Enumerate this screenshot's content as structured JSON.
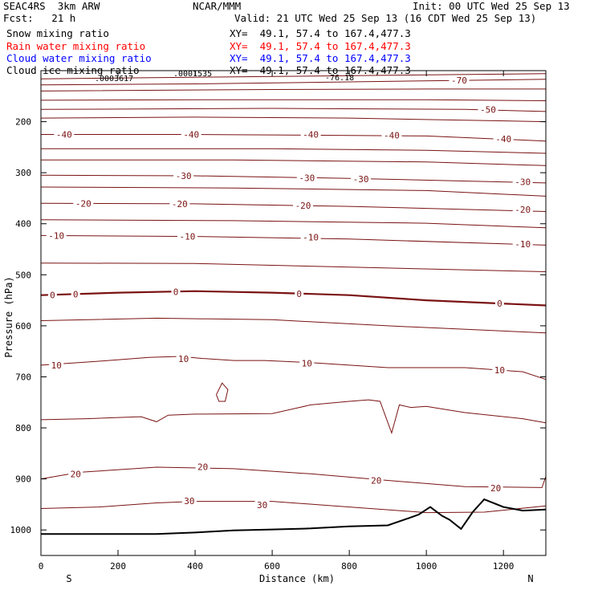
{
  "header": {
    "model": "SEAC4RS  3km ARW",
    "org": "NCAR/MMM",
    "init": "Init: 00 UTC Wed 25 Sep 13",
    "fcst": "Fcst:   21 h",
    "valid": "Valid: 21 UTC Wed 25 Sep 13 (16 CDT Wed 25 Sep 13)"
  },
  "fields": [
    {
      "name": "Snow mixing ratio",
      "xy": "XY=  49.1, 57.4 to 167.4,477.3",
      "color": "#000000"
    },
    {
      "name": "Rain water mixing ratio",
      "xy": "XY=  49.1, 57.4 to 167.4,477.3",
      "color": "#ff0000"
    },
    {
      "name": "Cloud water mixing ratio",
      "xy": "XY=  49.1, 57.4 to 167.4,477.3",
      "color": "#0000ff"
    },
    {
      "name": "Cloud ice mixing ratio",
      "xy": "XY=  49.1, 57.4 to 167.4,477.3",
      "color": "#000000"
    }
  ],
  "overlap_labels": [
    ".0003617",
    ".0001535",
    "-76.18"
  ],
  "chart_data": {
    "type": "line",
    "xlabel": "Distance (km)",
    "ylabel": "Pressure (hPa)",
    "xlim": [
      0,
      1310
    ],
    "ylim": [
      1050,
      100
    ],
    "x_ticks": [
      0,
      200,
      400,
      600,
      800,
      1000,
      1200
    ],
    "x_tick_labels": [
      "0",
      "200",
      "400",
      "600",
      "800",
      "1000",
      "1200"
    ],
    "y_ticks": [
      200,
      300,
      400,
      500,
      600,
      700,
      800,
      900,
      1000
    ],
    "y_tick_labels": [
      "200",
      "300",
      "400",
      "500",
      "600",
      "700",
      "800",
      "900",
      "1000"
    ],
    "x_end_labels": {
      "left": "S",
      "right": "N"
    },
    "isotherm_color": "#7a1212",
    "terrain_color": "#000000",
    "isotherms": [
      {
        "points": [
          [
            0,
            116
          ],
          [
            1310,
            106
          ]
        ]
      },
      {
        "points": [
          [
            0,
            128
          ],
          [
            400,
            126
          ],
          [
            800,
            122
          ],
          [
            1100,
            119
          ],
          [
            1310,
            117
          ]
        ],
        "label": "-70",
        "label_at": [
          1085,
          119
        ]
      },
      {
        "points": [
          [
            0,
            140
          ],
          [
            600,
            137
          ],
          [
            1000,
            136
          ],
          [
            1310,
            136
          ]
        ]
      },
      {
        "points": [
          [
            0,
            158
          ],
          [
            500,
            157
          ],
          [
            1000,
            157
          ],
          [
            1310,
            159
          ]
        ]
      },
      {
        "points": [
          [
            0,
            176
          ],
          [
            600,
            174
          ],
          [
            1100,
            176
          ],
          [
            1310,
            180
          ]
        ],
        "label": "-50",
        "label_at": [
          1160,
          176
        ]
      },
      {
        "points": [
          [
            0,
            193
          ],
          [
            400,
            191
          ],
          [
            800,
            193
          ],
          [
            1310,
            200
          ]
        ]
      },
      {
        "points": [
          [
            0,
            225
          ],
          [
            400,
            225
          ],
          [
            1000,
            228
          ],
          [
            1310,
            238
          ]
        ],
        "label": "-40",
        "label_at": [
          [
            60,
            225
          ],
          [
            390,
            225
          ],
          [
            700,
            225
          ],
          [
            910,
            227
          ],
          [
            1200,
            234
          ]
        ]
      },
      {
        "points": [
          [
            0,
            253
          ],
          [
            600,
            253
          ],
          [
            1000,
            256
          ],
          [
            1310,
            262
          ]
        ]
      },
      {
        "points": [
          [
            0,
            275
          ],
          [
            500,
            275
          ],
          [
            1000,
            279
          ],
          [
            1310,
            286
          ]
        ]
      },
      {
        "points": [
          [
            0,
            305
          ],
          [
            400,
            306
          ],
          [
            800,
            311
          ],
          [
            1310,
            320
          ]
        ],
        "label": "-30",
        "label_at": [
          [
            370,
            306
          ],
          [
            690,
            310
          ],
          [
            830,
            312
          ],
          [
            1250,
            318
          ]
        ]
      },
      {
        "points": [
          [
            0,
            328
          ],
          [
            500,
            330
          ],
          [
            1000,
            335
          ],
          [
            1310,
            346
          ]
        ]
      },
      {
        "points": [
          [
            0,
            360
          ],
          [
            400,
            361
          ],
          [
            800,
            366
          ],
          [
            1310,
            376
          ]
        ],
        "label": "-20",
        "label_at": [
          [
            110,
            360
          ],
          [
            360,
            361
          ],
          [
            680,
            364
          ],
          [
            1250,
            372
          ]
        ]
      },
      {
        "points": [
          [
            0,
            392
          ],
          [
            500,
            394
          ],
          [
            1000,
            399
          ],
          [
            1310,
            408
          ]
        ]
      },
      {
        "points": [
          [
            0,
            423
          ],
          [
            400,
            425
          ],
          [
            800,
            430
          ],
          [
            1310,
            442
          ]
        ],
        "label": "-10",
        "label_at": [
          [
            40,
            423
          ],
          [
            380,
            425
          ],
          [
            700,
            426
          ],
          [
            1250,
            440
          ]
        ]
      },
      {
        "points": [
          [
            0,
            477
          ],
          [
            400,
            478
          ],
          [
            800,
            485
          ],
          [
            1310,
            494
          ]
        ]
      },
      {
        "points": [
          [
            0,
            540
          ],
          [
            200,
            535
          ],
          [
            400,
            532
          ],
          [
            600,
            535
          ],
          [
            800,
            540
          ],
          [
            1000,
            550
          ],
          [
            1310,
            560
          ]
        ],
        "label": "0",
        "label_at": [
          [
            30,
            540
          ],
          [
            90,
            538
          ],
          [
            350,
            533
          ],
          [
            670,
            537
          ],
          [
            1190,
            556
          ]
        ],
        "bold": true
      },
      {
        "points": [
          [
            0,
            590
          ],
          [
            300,
            585
          ],
          [
            600,
            588
          ],
          [
            900,
            600
          ],
          [
            1310,
            614
          ]
        ]
      },
      {
        "points": [
          [
            0,
            677
          ],
          [
            140,
            670
          ],
          [
            280,
            662
          ],
          [
            360,
            660
          ],
          [
            420,
            664
          ],
          [
            500,
            668
          ],
          [
            580,
            668
          ],
          [
            700,
            672
          ],
          [
            900,
            682
          ],
          [
            1100,
            682
          ],
          [
            1250,
            690
          ],
          [
            1310,
            705
          ]
        ],
        "label": "10",
        "label_at": [
          [
            40,
            677
          ],
          [
            370,
            665
          ],
          [
            690,
            673
          ],
          [
            1190,
            687
          ]
        ]
      },
      {
        "points": [
          [
            0,
            784
          ],
          [
            120,
            782
          ],
          [
            260,
            778
          ],
          [
            300,
            788
          ],
          [
            330,
            775
          ],
          [
            400,
            773
          ],
          [
            600,
            772
          ],
          [
            700,
            755
          ],
          [
            800,
            748
          ],
          [
            850,
            745
          ],
          [
            880,
            748
          ],
          [
            910,
            810
          ],
          [
            930,
            755
          ],
          [
            960,
            760
          ],
          [
            1000,
            758
          ],
          [
            1100,
            770
          ],
          [
            1250,
            782
          ],
          [
            1310,
            790
          ]
        ]
      },
      {
        "points": [
          [
            0,
            900
          ],
          [
            100,
            887
          ],
          [
            300,
            877
          ],
          [
            500,
            880
          ],
          [
            700,
            890
          ],
          [
            900,
            903
          ],
          [
            1100,
            915
          ],
          [
            1300,
            917
          ],
          [
            1310,
            895
          ]
        ],
        "label": "20",
        "label_at": [
          [
            90,
            890
          ],
          [
            420,
            876
          ],
          [
            870,
            903
          ],
          [
            1180,
            918
          ]
        ]
      },
      {
        "points": [
          [
            0,
            958
          ],
          [
            150,
            955
          ],
          [
            300,
            947
          ],
          [
            400,
            944
          ],
          [
            600,
            944
          ],
          [
            800,
            955
          ],
          [
            1000,
            966
          ],
          [
            1150,
            965
          ],
          [
            1310,
            953
          ]
        ],
        "label": "30",
        "label_at": [
          [
            385,
            943
          ],
          [
            574,
            951
          ]
        ]
      }
    ],
    "terrain": {
      "points": [
        [
          0,
          1008
        ],
        [
          100,
          1008
        ],
        [
          300,
          1008
        ],
        [
          400,
          1005
        ],
        [
          500,
          1001
        ],
        [
          600,
          999
        ],
        [
          700,
          997
        ],
        [
          800,
          993
        ],
        [
          900,
          991
        ],
        [
          950,
          978
        ],
        [
          980,
          970
        ],
        [
          1010,
          955
        ],
        [
          1040,
          972
        ],
        [
          1060,
          980
        ],
        [
          1090,
          998
        ],
        [
          1120,
          965
        ],
        [
          1150,
          940
        ],
        [
          1200,
          955
        ],
        [
          1250,
          962
        ],
        [
          1310,
          960
        ]
      ]
    }
  }
}
